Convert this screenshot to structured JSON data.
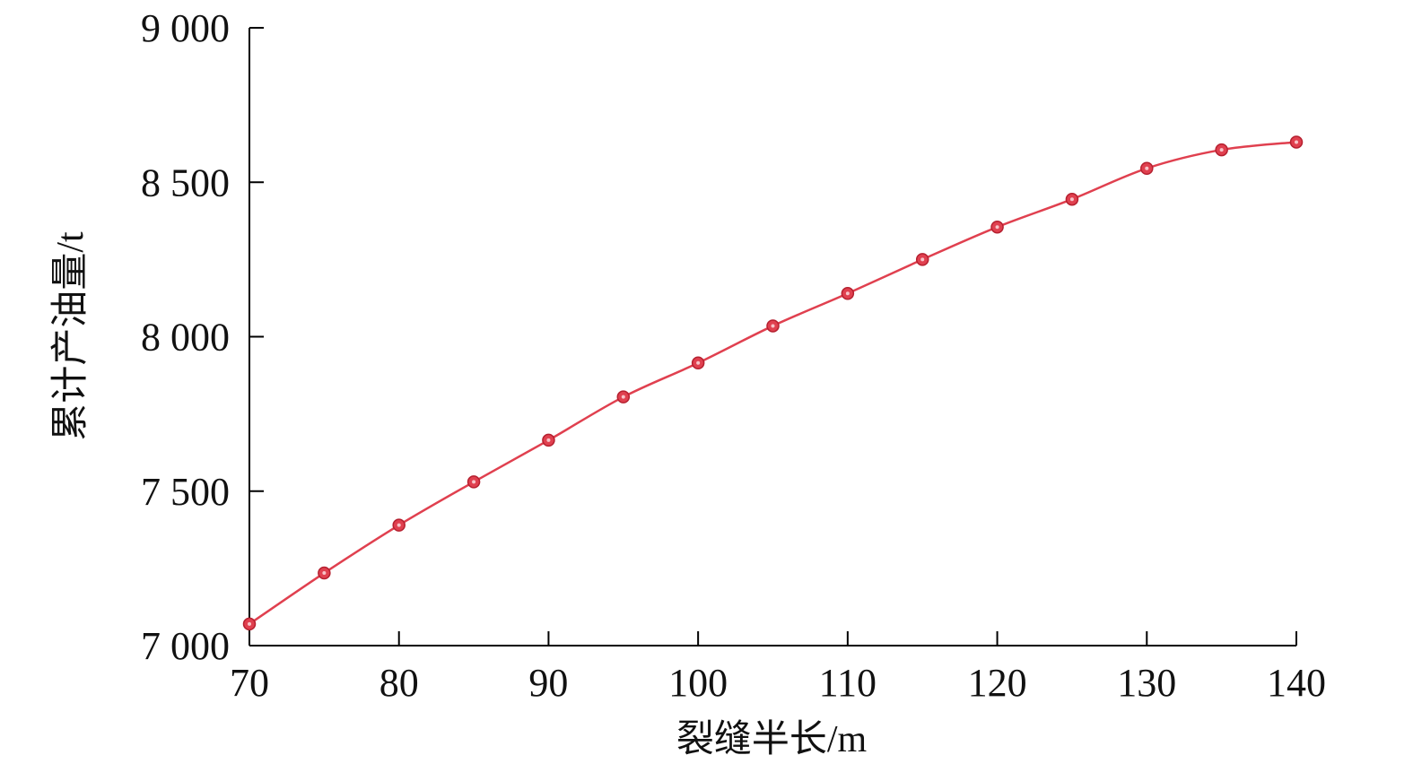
{
  "chart_data": {
    "type": "line",
    "title": "",
    "xlabel": "裂缝半长/m",
    "ylabel": "累计产油量/t",
    "xlim": [
      70,
      140
    ],
    "ylim": [
      7000,
      9000
    ],
    "x_ticks": [
      70,
      80,
      90,
      100,
      110,
      120,
      130,
      140
    ],
    "x_tick_labels": [
      "70",
      "80",
      "90",
      "100",
      "110",
      "120",
      "130",
      "140"
    ],
    "y_ticks": [
      7000,
      7500,
      8000,
      8500,
      9000
    ],
    "y_tick_labels": [
      "7 000",
      "7 500",
      "8 000",
      "8 500",
      "9 000"
    ],
    "grid": false,
    "legend": "none",
    "series": [
      {
        "color": "#e0404f",
        "marker": "circle",
        "x": [
          70,
          75,
          80,
          85,
          90,
          95,
          100,
          105,
          110,
          115,
          120,
          125,
          130,
          135,
          140
        ],
        "y": [
          7070,
          7235,
          7390,
          7530,
          7665,
          7805,
          7915,
          8035,
          8140,
          8250,
          8355,
          8445,
          8545,
          8605,
          8630
        ]
      }
    ]
  }
}
